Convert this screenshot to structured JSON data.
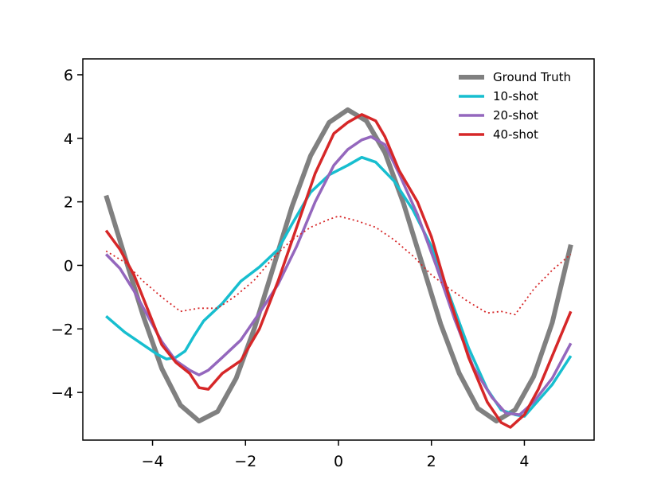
{
  "chart_data": {
    "type": "line",
    "title": "",
    "xlabel": "",
    "ylabel": "",
    "xlim": [
      -5.5,
      5.5
    ],
    "ylim": [
      -5.5,
      6.5
    ],
    "xticks": [
      -4,
      -2,
      0,
      2,
      4
    ],
    "yticks": [
      -4,
      -2,
      0,
      2,
      4,
      6
    ],
    "xtick_labels": [
      "−4",
      "−2",
      "0",
      "2",
      "4"
    ],
    "ytick_labels": [
      "−4",
      "−2",
      "0",
      "2",
      "4",
      "6"
    ],
    "legend_position": "top-right",
    "series": [
      {
        "name": "Ground Truth",
        "color": "#808080",
        "style": "thick",
        "points": [
          [
            -5.0,
            2.2
          ],
          [
            -4.6,
            0.3
          ],
          [
            -4.2,
            -1.6
          ],
          [
            -3.8,
            -3.25
          ],
          [
            -3.4,
            -4.4
          ],
          [
            -3.0,
            -4.9
          ],
          [
            -2.6,
            -4.6
          ],
          [
            -2.2,
            -3.55
          ],
          [
            -1.8,
            -1.95
          ],
          [
            -1.4,
            -0.05
          ],
          [
            -1.0,
            1.85
          ],
          [
            -0.6,
            3.45
          ],
          [
            -0.2,
            4.5
          ],
          [
            0.2,
            4.9
          ],
          [
            0.6,
            4.55
          ],
          [
            1.0,
            3.55
          ],
          [
            1.4,
            1.95
          ],
          [
            1.8,
            0.05
          ],
          [
            2.2,
            -1.85
          ],
          [
            2.6,
            -3.4
          ],
          [
            3.0,
            -4.5
          ],
          [
            3.4,
            -4.9
          ],
          [
            3.8,
            -4.55
          ],
          [
            4.2,
            -3.5
          ],
          [
            4.6,
            -1.8
          ],
          [
            5.0,
            0.65
          ]
        ]
      },
      {
        "name": "10-shot",
        "color": "#17becf",
        "style": "solid",
        "points": [
          [
            -5.0,
            -1.6
          ],
          [
            -4.6,
            -2.1
          ],
          [
            -4.2,
            -2.5
          ],
          [
            -3.9,
            -2.8
          ],
          [
            -3.7,
            -2.95
          ],
          [
            -3.5,
            -2.9
          ],
          [
            -3.3,
            -2.7
          ],
          [
            -3.1,
            -2.2
          ],
          [
            -2.9,
            -1.75
          ],
          [
            -2.5,
            -1.2
          ],
          [
            -2.1,
            -0.5
          ],
          [
            -1.7,
            -0.05
          ],
          [
            -1.3,
            0.5
          ],
          [
            -1.0,
            1.3
          ],
          [
            -0.6,
            2.3
          ],
          [
            -0.2,
            2.85
          ],
          [
            0.2,
            3.15
          ],
          [
            0.5,
            3.4
          ],
          [
            0.8,
            3.25
          ],
          [
            1.2,
            2.65
          ],
          [
            1.6,
            1.75
          ],
          [
            2.0,
            0.6
          ],
          [
            2.4,
            -1.0
          ],
          [
            2.8,
            -2.6
          ],
          [
            3.2,
            -3.9
          ],
          [
            3.5,
            -4.55
          ],
          [
            3.8,
            -4.7
          ],
          [
            4.0,
            -4.75
          ],
          [
            4.3,
            -4.25
          ],
          [
            4.6,
            -3.75
          ],
          [
            5.0,
            -2.85
          ]
        ]
      },
      {
        "name": "20-shot",
        "color": "#9467bd",
        "style": "solid",
        "points": [
          [
            -5.0,
            0.35
          ],
          [
            -4.7,
            -0.1
          ],
          [
            -4.4,
            -0.8
          ],
          [
            -4.1,
            -1.6
          ],
          [
            -3.8,
            -2.4
          ],
          [
            -3.5,
            -3.0
          ],
          [
            -3.2,
            -3.3
          ],
          [
            -3.0,
            -3.45
          ],
          [
            -2.8,
            -3.3
          ],
          [
            -2.5,
            -2.9
          ],
          [
            -2.1,
            -2.35
          ],
          [
            -1.7,
            -1.5
          ],
          [
            -1.3,
            -0.6
          ],
          [
            -0.9,
            0.6
          ],
          [
            -0.5,
            2.0
          ],
          [
            -0.1,
            3.15
          ],
          [
            0.2,
            3.65
          ],
          [
            0.5,
            3.95
          ],
          [
            0.7,
            4.05
          ],
          [
            1.0,
            3.8
          ],
          [
            1.3,
            2.9
          ],
          [
            1.7,
            1.6
          ],
          [
            2.1,
            0.0
          ],
          [
            2.5,
            -1.7
          ],
          [
            2.9,
            -3.2
          ],
          [
            3.3,
            -4.15
          ],
          [
            3.6,
            -4.65
          ],
          [
            3.9,
            -4.7
          ],
          [
            4.2,
            -4.3
          ],
          [
            4.6,
            -3.55
          ],
          [
            5.0,
            -2.45
          ]
        ]
      },
      {
        "name": "40-shot",
        "color": "#d62728",
        "style": "solid",
        "points": [
          [
            -5.0,
            1.1
          ],
          [
            -4.7,
            0.5
          ],
          [
            -4.4,
            -0.3
          ],
          [
            -4.1,
            -1.4
          ],
          [
            -3.8,
            -2.5
          ],
          [
            -3.5,
            -3.05
          ],
          [
            -3.2,
            -3.4
          ],
          [
            -3.0,
            -3.85
          ],
          [
            -2.8,
            -3.9
          ],
          [
            -2.5,
            -3.4
          ],
          [
            -2.1,
            -3.0
          ],
          [
            -1.7,
            -2.0
          ],
          [
            -1.3,
            -0.5
          ],
          [
            -0.9,
            1.2
          ],
          [
            -0.5,
            2.9
          ],
          [
            -0.1,
            4.15
          ],
          [
            0.2,
            4.5
          ],
          [
            0.5,
            4.75
          ],
          [
            0.8,
            4.55
          ],
          [
            1.0,
            4.05
          ],
          [
            1.3,
            3.0
          ],
          [
            1.7,
            2.0
          ],
          [
            2.0,
            0.9
          ],
          [
            2.4,
            -1.1
          ],
          [
            2.8,
            -2.9
          ],
          [
            3.2,
            -4.3
          ],
          [
            3.5,
            -4.95
          ],
          [
            3.7,
            -5.1
          ],
          [
            4.0,
            -4.7
          ],
          [
            4.3,
            -3.9
          ],
          [
            4.6,
            -2.85
          ],
          [
            5.0,
            -1.45
          ]
        ]
      },
      {
        "name": "",
        "color": "#d62728",
        "style": "dotted",
        "points": [
          [
            -5.0,
            0.45
          ],
          [
            -4.6,
            0.1
          ],
          [
            -4.2,
            -0.5
          ],
          [
            -3.8,
            -1.0
          ],
          [
            -3.4,
            -1.45
          ],
          [
            -3.0,
            -1.35
          ],
          [
            -2.6,
            -1.35
          ],
          [
            -2.2,
            -0.95
          ],
          [
            -1.8,
            -0.45
          ],
          [
            -1.4,
            0.25
          ],
          [
            -1.0,
            0.8
          ],
          [
            -0.6,
            1.2
          ],
          [
            -0.2,
            1.45
          ],
          [
            0.0,
            1.55
          ],
          [
            0.4,
            1.4
          ],
          [
            0.8,
            1.2
          ],
          [
            1.2,
            0.8
          ],
          [
            1.6,
            0.3
          ],
          [
            2.0,
            -0.3
          ],
          [
            2.4,
            -0.75
          ],
          [
            2.8,
            -1.15
          ],
          [
            3.2,
            -1.5
          ],
          [
            3.5,
            -1.45
          ],
          [
            3.8,
            -1.55
          ],
          [
            4.2,
            -0.75
          ],
          [
            4.6,
            -0.15
          ],
          [
            5.0,
            0.35
          ]
        ]
      }
    ]
  }
}
